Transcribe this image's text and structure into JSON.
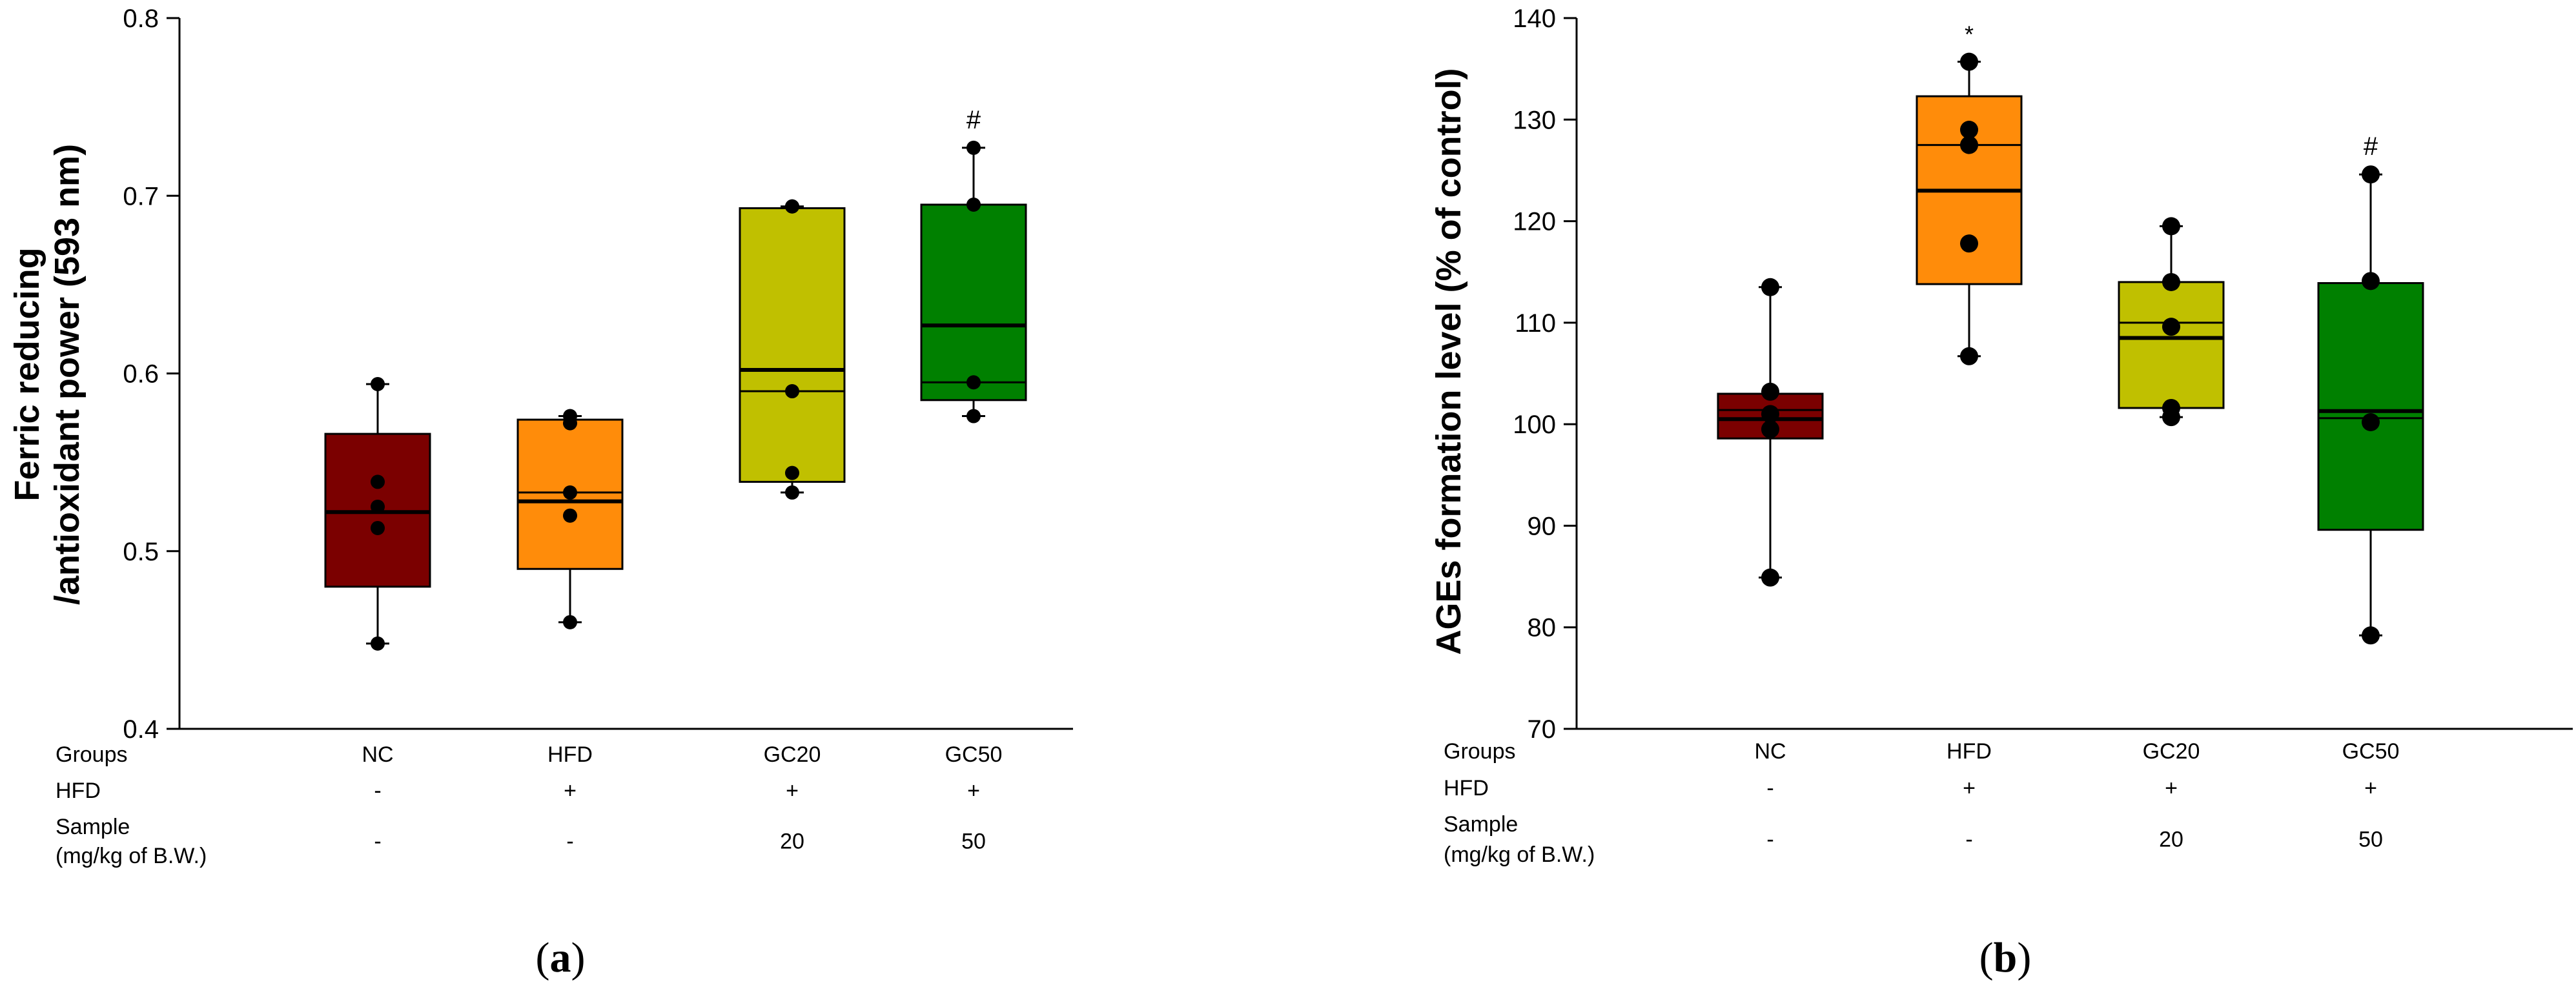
{
  "chart_data": [
    {
      "type": "box",
      "panel_label": "a",
      "ylabel_line1": "Ferric reducing",
      "ylabel_line2": "/antioxidant power (593 nm)",
      "ylim": [
        0.4,
        0.8
      ],
      "yticks": [
        "0.4",
        "0.5",
        "0.6",
        "0.7",
        "0.8"
      ],
      "ytick_values": [
        0.4,
        0.5,
        0.6,
        0.7,
        0.8
      ],
      "table": {
        "row_labels": [
          "Groups",
          "HFD",
          "Sample",
          "(mg/kg of B.W.)"
        ],
        "groups": [
          "NC",
          "HFD",
          "GC20",
          "GC50"
        ],
        "hfd": [
          "-",
          "+",
          "+",
          "+"
        ],
        "sample": [
          "-",
          "-",
          "20",
          "50"
        ]
      },
      "series": [
        {
          "name": "NC",
          "color": "#7b0000",
          "q1": 0.48,
          "median": 0.522,
          "mean": 0.522,
          "q3": 0.566,
          "whisker_low": 0.448,
          "whisker_high": 0.594,
          "points": [
            0.448,
            0.513,
            0.525,
            0.539,
            0.594
          ],
          "annotation": ""
        },
        {
          "name": "HFD",
          "color": "#ff8c0a",
          "q1": 0.49,
          "median": 0.528,
          "mean": 0.533,
          "q3": 0.574,
          "whisker_low": 0.46,
          "whisker_high": 0.576,
          "points": [
            0.46,
            0.52,
            0.533,
            0.572,
            0.576
          ],
          "annotation": ""
        },
        {
          "name": "GC20",
          "color": "#c0c000",
          "q1": 0.539,
          "median": 0.602,
          "mean": 0.59,
          "q3": 0.693,
          "whisker_low": 0.533,
          "whisker_high": 0.694,
          "points": [
            0.533,
            0.544,
            0.59,
            0.694,
            0.694
          ],
          "annotation": ""
        },
        {
          "name": "GC50",
          "color": "#008000",
          "q1": 0.585,
          "median": 0.627,
          "mean": 0.595,
          "q3": 0.695,
          "whisker_low": 0.576,
          "whisker_high": 0.727,
          "points": [
            0.576,
            0.595,
            0.695,
            0.727
          ],
          "annotation": "#"
        }
      ]
    },
    {
      "type": "box",
      "panel_label": "b",
      "ylabel_line1": "AGEs formation level (% of control)",
      "ylabel_line2": "",
      "ylim": [
        70,
        140
      ],
      "yticks": [
        "70",
        "80",
        "90",
        "100",
        "110",
        "120",
        "130",
        "140"
      ],
      "ytick_values": [
        70,
        80,
        90,
        100,
        110,
        120,
        130,
        140
      ],
      "table": {
        "row_labels": [
          "Groups",
          "HFD",
          "Sample",
          "(mg/kg of B.W.)"
        ],
        "groups": [
          "NC",
          "HFD",
          "GC20",
          "GC50"
        ],
        "hfd": [
          "-",
          "+",
          "+",
          "+"
        ],
        "sample": [
          "-",
          "-",
          "20",
          "50"
        ]
      },
      "series": [
        {
          "name": "NC",
          "color": "#7b0000",
          "q1": 98.6,
          "median": 100.5,
          "mean": 101.4,
          "q3": 103.0,
          "whisker_low": 84.9,
          "whisker_high": 113.5,
          "points": [
            84.9,
            99.5,
            101.0,
            103.2,
            113.5
          ],
          "annotation": ""
        },
        {
          "name": "HFD",
          "color": "#ff8c0a",
          "q1": 113.8,
          "median": 123.0,
          "mean": 127.5,
          "q3": 132.3,
          "whisker_low": 106.7,
          "whisker_high": 135.7,
          "points": [
            106.7,
            117.8,
            127.5,
            129.0,
            135.7
          ],
          "annotation": "*"
        },
        {
          "name": "GC20",
          "color": "#c0c000",
          "q1": 101.6,
          "median": 108.5,
          "mean": 110.0,
          "q3": 114.0,
          "whisker_low": 100.7,
          "whisker_high": 119.5,
          "points": [
            100.7,
            101.6,
            109.6,
            114.0,
            119.5
          ],
          "annotation": ""
        },
        {
          "name": "GC50",
          "color": "#008000",
          "q1": 89.6,
          "median": 101.3,
          "mean": 100.6,
          "q3": 113.9,
          "whisker_low": 79.2,
          "whisker_high": 124.6,
          "points": [
            79.2,
            100.2,
            114.1,
            124.6
          ],
          "annotation": "#"
        }
      ]
    }
  ]
}
